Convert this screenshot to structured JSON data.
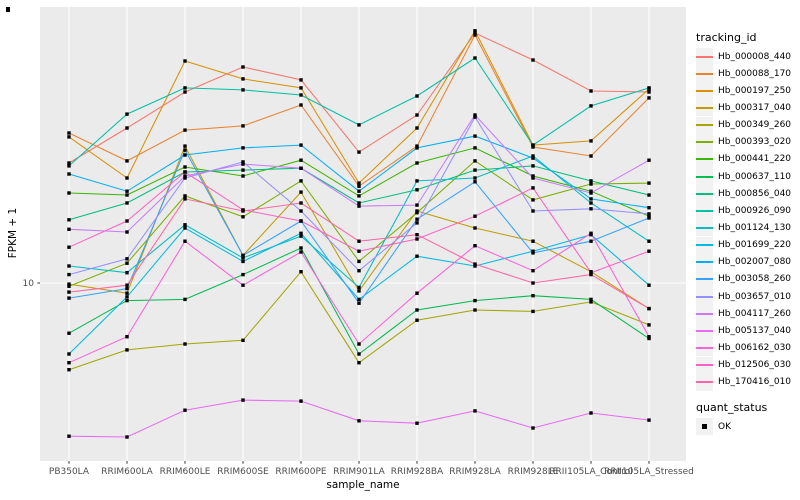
{
  "figure": {
    "background": "#FFFFFF",
    "panel_background": "#EBEBEB",
    "grid_color": "#FFFFFF",
    "tick_color": "#333333",
    "tick_label_color": "#4D4D4D"
  },
  "chart_data": {
    "type": "line",
    "title": "",
    "xlabel": "sample_name",
    "ylabel": "FPKM + 1",
    "y_scale": "log10",
    "y_ticks": [
      10
    ],
    "y_tick_labels": [
      "10"
    ],
    "grid": "on",
    "legend_position": "right",
    "marker": "filled-square",
    "marker_color": "#000000",
    "categories": [
      "PB350LA",
      "RRIM600LA",
      "RRIM600LE",
      "RRIM600SE",
      "RRIM600PE",
      "RRIM901LA",
      "RRIM928BA",
      "RRIM928LA",
      "RRIM928LE",
      "RRII105LA_Control",
      "RRII105LA_Stressed"
    ],
    "series": [
      {
        "name": "Hb_000008_440",
        "color": "#F8766D",
        "values": [
          30.2,
          41.7,
          58.1,
          73.1,
          64.9,
          33.4,
          47,
          100,
          78,
          58.6,
          58.1
        ]
      },
      {
        "name": "Hb_000088_170",
        "color": "#EA8331",
        "values": [
          39.8,
          30.8,
          40.9,
          42.5,
          51.5,
          24.4,
          35.3,
          98.2,
          35,
          32.2,
          55
        ]
      },
      {
        "name": "Hb_000197_250",
        "color": "#D89000",
        "values": [
          38.4,
          26.3,
          77.3,
          65.5,
          60.3,
          25.1,
          41.7,
          102,
          35.6,
          37,
          59.7
        ]
      },
      {
        "name": "Hb_000317_040",
        "color": "#C09B00",
        "values": [
          9.9,
          9.1,
          35.3,
          12.9,
          23.1,
          9.3,
          19.4,
          16.6,
          14.7,
          11.1,
          7.9
        ]
      },
      {
        "name": "Hb_000349_260",
        "color": "#A3A500",
        "values": [
          4.5,
          5.4,
          5.7,
          5.9,
          11.1,
          4.8,
          7.1,
          7.8,
          7.7,
          8.4,
          6.8
        ]
      },
      {
        "name": "Hb_000393_020",
        "color": "#7CAE00",
        "values": [
          9.7,
          12,
          22.3,
          18.4,
          25.6,
          12.2,
          19.1,
          30.8,
          21.5,
          24.9,
          25.1
        ]
      },
      {
        "name": "Hb_000441_220",
        "color": "#39B600",
        "values": [
          22.9,
          22.5,
          29.1,
          26.8,
          31,
          22.3,
          30.2,
          34.7,
          26.8,
          23.3,
          18.5
        ]
      },
      {
        "name": "Hb_000637_110",
        "color": "#00BB4E",
        "values": [
          6.3,
          8.5,
          8.6,
          10.8,
          13.8,
          5.2,
          7.8,
          8.5,
          8.9,
          8.6,
          6
        ]
      },
      {
        "name": "Hb_000856_040",
        "color": "#00BF7D",
        "values": [
          17.9,
          20.9,
          27.8,
          28.3,
          28.8,
          20.9,
          23.6,
          28.3,
          29.4,
          25.6,
          22.5
        ]
      },
      {
        "name": "Hb_000926_090",
        "color": "#00C1A3",
        "values": [
          29.4,
          47.4,
          60.3,
          59.2,
          56.5,
          42.9,
          56,
          79.4,
          35.6,
          51.1,
          60.3
        ]
      },
      {
        "name": "Hb_001124_130",
        "color": "#00BFC4",
        "values": [
          11.7,
          11,
          17.1,
          12.6,
          15.4,
          9.6,
          25.6,
          26.3,
          32.2,
          20.9,
          14.7
        ]
      },
      {
        "name": "Hb_001699_220",
        "color": "#00BAE0",
        "values": [
          5.2,
          8.8,
          16.6,
          12.2,
          15.8,
          8.6,
          12.8,
          11.7,
          13.4,
          15.6,
          9.8
        ]
      },
      {
        "name": "Hb_002007_080",
        "color": "#00B0F6",
        "values": [
          27.3,
          23.3,
          32.5,
          34.7,
          35.6,
          23.3,
          34.7,
          38.7,
          31.6,
          21.7,
          20
        ]
      },
      {
        "name": "Hb_003058_260",
        "color": "#35A2FF",
        "values": [
          8.7,
          9.5,
          34,
          12.9,
          17.7,
          8.3,
          18,
          25.4,
          13.2,
          14.7,
          18.2
        ]
      },
      {
        "name": "Hb_003657_010",
        "color": "#9590FF",
        "values": [
          10.8,
          12.5,
          26.3,
          30.5,
          19.4,
          11.2,
          17.4,
          46.1,
          19.4,
          19.8,
          18.9
        ]
      },
      {
        "name": "Hb_004117_260",
        "color": "#C77CFF",
        "values": [
          16.4,
          16,
          26.8,
          29.9,
          28.8,
          20.3,
          20.5,
          47,
          26.3,
          22.9,
          31
        ]
      },
      {
        "name": "Hb_005137_040",
        "color": "#E76BF3",
        "values": [
          2.44,
          2.42,
          3.1,
          3.4,
          3.37,
          2.81,
          2.75,
          3.08,
          2.63,
          3.02,
          2.83
        ]
      },
      {
        "name": "Hb_006162_030",
        "color": "#FA62DB",
        "values": [
          4.8,
          6.1,
          14.7,
          9.8,
          13.3,
          5.7,
          9.1,
          14.1,
          11.2,
          15.8,
          6.1
        ]
      },
      {
        "name": "Hb_012506_030",
        "color": "#FF61C3",
        "values": [
          13.9,
          17.7,
          27.8,
          19.6,
          17.7,
          13.4,
          15,
          18.5,
          24,
          11,
          13.4
        ]
      },
      {
        "name": "Hb_170416_010",
        "color": "#FF67A4",
        "values": [
          9.2,
          9.8,
          21.7,
          19.4,
          20.9,
          14.7,
          15.6,
          11.9,
          10,
          10.8,
          7.9
        ]
      }
    ]
  },
  "legend": {
    "tracking_title": "tracking_id",
    "quant_title": "quant_status",
    "quant_items": [
      {
        "label": "OK",
        "marker": "filled-square",
        "color": "#000000"
      }
    ]
  }
}
